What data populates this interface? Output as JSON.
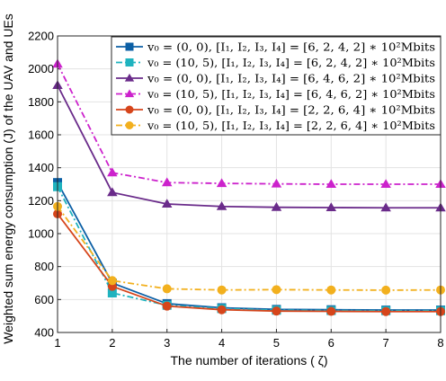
{
  "chart_data": {
    "type": "line",
    "x": [
      1,
      2,
      3,
      4,
      5,
      6,
      7,
      8
    ],
    "xlim": [
      1,
      8
    ],
    "ylim": [
      400,
      2200
    ],
    "xticks": [
      "1",
      "2",
      "3",
      "4",
      "5",
      "6",
      "7",
      "8"
    ],
    "yticks": [
      "400",
      "600",
      "800",
      "1000",
      "1200",
      "1400",
      "1600",
      "1800",
      "2000",
      "2200"
    ],
    "xlabel": "The number of iterations ( ζ)",
    "ylabel": "Weighted sum energy consumption (J) of the UAV and UEs",
    "grid": true,
    "legend_position": "top-right",
    "series": [
      {
        "name": "v₀ = (0, 0), [I₁, I₂, I₃, I₄] = [6, 2, 4, 2] ∗ 10²Mbits",
        "color": "#0b5fa5",
        "dash": "solid",
        "marker": "square",
        "values": [
          1310,
          700,
          575,
          550,
          540,
          538,
          536,
          536
        ]
      },
      {
        "name": "v₀ = (10, 5), [I₁, I₂, I₃, I₄] = [6, 2, 4, 2] ∗ 10²Mbits",
        "color": "#1fb3bf",
        "dash": "dashdot",
        "marker": "square",
        "values": [
          1285,
          640,
          565,
          545,
          535,
          533,
          532,
          532
        ]
      },
      {
        "name": "v₀ = (0, 0), [I₁, I₂, I₃, I₄] = [6, 4, 6, 2] ∗ 10²Mbits",
        "color": "#6a2b8a",
        "dash": "solid",
        "marker": "triangle",
        "values": [
          1900,
          1250,
          1180,
          1165,
          1160,
          1158,
          1157,
          1157
        ]
      },
      {
        "name": "v₀ = (10, 5), [I₁, I₂, I₃, I₄] = [6, 4, 6, 2] ∗ 10²Mbits",
        "color": "#cc22cc",
        "dash": "dashdot",
        "marker": "triangle",
        "values": [
          2030,
          1370,
          1310,
          1305,
          1302,
          1300,
          1300,
          1300
        ]
      },
      {
        "name": "v₀ = (0, 0), [I₁, I₂, I₃, I₄] = [2, 2, 6, 4] ∗ 10²Mbits",
        "color": "#d6451b",
        "dash": "solid",
        "marker": "circle",
        "values": [
          1120,
          680,
          560,
          538,
          530,
          528,
          527,
          527
        ]
      },
      {
        "name": "v₀ = (10, 5), [I₁, I₂, I₃, I₄] = [2, 2, 6, 4] ∗ 10²Mbits",
        "color": "#f2b01e",
        "dash": "dashdot",
        "marker": "circle",
        "values": [
          1165,
          715,
          665,
          658,
          660,
          658,
          657,
          658
        ]
      }
    ]
  }
}
